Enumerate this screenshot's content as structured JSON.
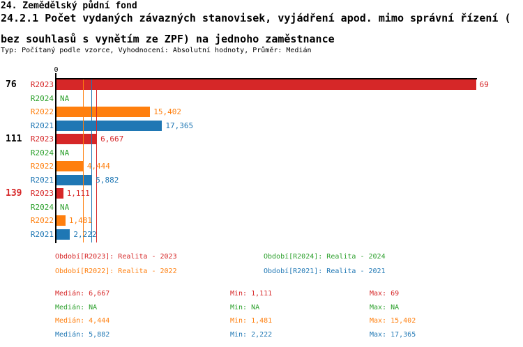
{
  "header": {
    "line1": "24. Zemědělský půdní fond",
    "subtitle_lines": [
      "24.2.1 Počet vydaných závazných stanovisek, vyjádření apod. mimo správní řízení (",
      "bez souhlasů s vynětím ze ZPF) na jednoho zaměstnance"
    ],
    "meta": "Typ: Počítaný podle vzorce, Vyhodnocení: Absolutní hodnoty, Průměr: Medián"
  },
  "chart_data": {
    "type": "bar",
    "orientation": "horizontal",
    "title": "24.2.1 Počet vydaných závazných stanovisek, vyjádření apod. mimo správní řízení (bez souhlasů s vynětím ze ZPF) na jednoho zaměstnance",
    "x_axis": {
      "origin_label": "0",
      "min": 0,
      "max": 69,
      "grid": false
    },
    "series_colors": {
      "R2023": "#d62728",
      "R2024": "#2ca02c",
      "R2022": "#ff7f0e",
      "R2021": "#1f77b4"
    },
    "groups": [
      {
        "label": "76",
        "label_color": "#000000",
        "rows": [
          {
            "series": "R2023",
            "value": 69,
            "display": "69"
          },
          {
            "series": "R2024",
            "value": null,
            "display": "NA"
          },
          {
            "series": "R2022",
            "value": 15.402,
            "display": "15,402"
          },
          {
            "series": "R2021",
            "value": 17.365,
            "display": "17,365"
          }
        ]
      },
      {
        "label": "111",
        "label_color": "#000000",
        "rows": [
          {
            "series": "R2023",
            "value": 6.667,
            "display": "6,667"
          },
          {
            "series": "R2024",
            "value": null,
            "display": "NA"
          },
          {
            "series": "R2022",
            "value": 4.444,
            "display": "4,444"
          },
          {
            "series": "R2021",
            "value": 5.882,
            "display": "5,882"
          }
        ]
      },
      {
        "label": "139",
        "label_color": "#d62728",
        "rows": [
          {
            "series": "R2023",
            "value": 1.111,
            "display": "1,111"
          },
          {
            "series": "R2024",
            "value": null,
            "display": "NA"
          },
          {
            "series": "R2022",
            "value": 1.481,
            "display": "1,481"
          },
          {
            "series": "R2021",
            "value": 2.222,
            "display": "2,222"
          }
        ]
      }
    ],
    "median_lines": [
      {
        "series": "R2023",
        "value": 6.667
      },
      {
        "series": "R2022",
        "value": 4.444
      },
      {
        "series": "R2021",
        "value": 5.882
      }
    ],
    "legend": [
      {
        "series": "R2023",
        "label": "Období[R2023]: Realita - 2023"
      },
      {
        "series": "R2024",
        "label": "Období[R2024]: Realita - 2024"
      },
      {
        "series": "R2022",
        "label": "Období[R2022]: Realita - 2022"
      },
      {
        "series": "R2021",
        "label": "Období[R2021]: Realita - 2021"
      }
    ],
    "stats": [
      {
        "series": "R2023",
        "cells": [
          "Medián: 6,667",
          "Min: 1,111",
          "Max: 69"
        ]
      },
      {
        "series": "R2024",
        "cells": [
          "Medián: NA",
          "Min: NA",
          "Max: NA"
        ]
      },
      {
        "series": "R2022",
        "cells": [
          "Medián: 4,444",
          "Min: 1,481",
          "Max: 15,402"
        ]
      },
      {
        "series": "R2021",
        "cells": [
          "Medián: 5,882",
          "Min: 2,222",
          "Max: 17,365"
        ]
      }
    ]
  }
}
